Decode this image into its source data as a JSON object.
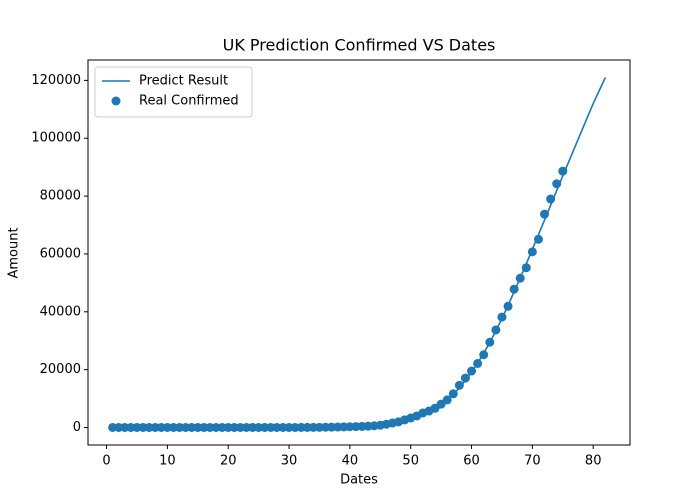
{
  "chart_data": {
    "type": "line",
    "title": "UK Prediction Confirmed VS Dates",
    "x_label": "Dates",
    "y_label": "Amount",
    "xlim": [
      -3.05,
      86.05
    ],
    "xticks": [
      0,
      10,
      20,
      30,
      40,
      50,
      60,
      70,
      80
    ],
    "ylim": [
      -6050,
      127050
    ],
    "yticks": [
      0,
      20000,
      40000,
      60000,
      80000,
      100000,
      120000
    ],
    "legend": "upper left",
    "series": [
      {
        "name": "Predict Result",
        "type": "line",
        "color": "#1f77b4",
        "x": [
          1,
          2,
          3,
          4,
          5,
          6,
          7,
          8,
          9,
          10,
          11,
          12,
          13,
          14,
          15,
          16,
          17,
          18,
          19,
          20,
          21,
          22,
          23,
          24,
          25,
          26,
          27,
          28,
          29,
          30,
          31,
          32,
          33,
          34,
          35,
          36,
          37,
          38,
          39,
          40,
          41,
          42,
          43,
          44,
          45,
          46,
          47,
          48,
          49,
          50,
          51,
          52,
          53,
          54,
          55,
          56,
          57,
          58,
          59,
          60,
          61,
          62,
          63,
          64,
          65,
          66,
          67,
          68,
          69,
          70,
          71,
          72,
          73,
          74,
          75,
          76,
          77,
          78,
          79,
          80,
          81,
          82
        ],
        "values": [
          0,
          0,
          0,
          0,
          0,
          0,
          0,
          0,
          0,
          0,
          0,
          0,
          0,
          0,
          0,
          0,
          0,
          0,
          0,
          0,
          0,
          0,
          0,
          0,
          0,
          0,
          0,
          0,
          0,
          0,
          10,
          15,
          25,
          35,
          50,
          75,
          110,
          160,
          210,
          270,
          330,
          400,
          500,
          650,
          850,
          1100,
          1450,
          1900,
          2450,
          3100,
          3900,
          4800,
          5800,
          6900,
          8200,
          9700,
          11500,
          13700,
          16300,
          19200,
          22300,
          25700,
          29400,
          33400,
          37700,
          42200,
          46900,
          51700,
          56600,
          61600,
          66600,
          71700,
          76800,
          81900,
          87000,
          92000,
          97000,
          102000,
          107000,
          112000,
          116500,
          121000
        ]
      },
      {
        "name": "Real Confirmed",
        "type": "scatter",
        "color": "#1f77b4",
        "x": [
          1,
          2,
          3,
          4,
          5,
          6,
          7,
          8,
          9,
          10,
          11,
          12,
          13,
          14,
          15,
          16,
          17,
          18,
          19,
          20,
          21,
          22,
          23,
          24,
          25,
          26,
          27,
          28,
          29,
          30,
          31,
          32,
          33,
          34,
          35,
          36,
          37,
          38,
          39,
          40,
          41,
          42,
          43,
          44,
          45,
          46,
          47,
          48,
          49,
          50,
          51,
          52,
          53,
          54,
          55,
          56,
          57,
          58,
          59,
          60,
          61,
          62,
          63,
          64,
          65,
          66,
          67,
          68,
          69,
          70,
          71,
          72,
          73,
          74,
          75
        ],
        "values": [
          2,
          2,
          2,
          2,
          2,
          2,
          2,
          2,
          3,
          3,
          8,
          8,
          9,
          9,
          9,
          9,
          9,
          9,
          9,
          9,
          9,
          9,
          9,
          9,
          13,
          13,
          13,
          13,
          13,
          13,
          19,
          23,
          35,
          40,
          51,
          85,
          115,
          163,
          206,
          273,
          321,
          373,
          456,
          590,
          798,
          1140,
          1543,
          1950,
          2626,
          3269,
          3983,
          5018,
          5683,
          6650,
          8077,
          9529,
          11658,
          14579,
          17089,
          19522,
          22141,
          25150,
          29474,
          33718,
          38168,
          41903,
          47806,
          51608,
          55242,
          60733,
          65077,
          73758,
          78991,
          84279,
          88621
        ]
      }
    ]
  }
}
